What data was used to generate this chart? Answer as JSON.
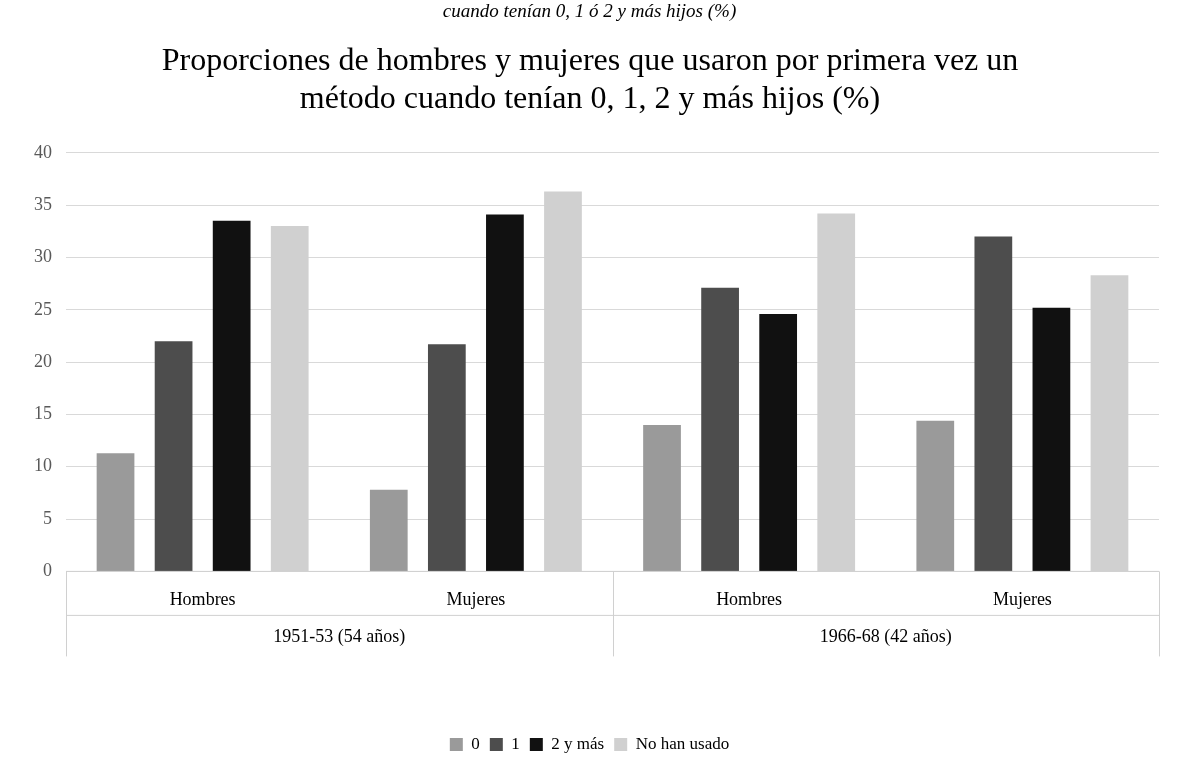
{
  "chart_data": {
    "type": "bar",
    "subtitle": "cuando tenían 0, 1 ó 2 y más hijos (%)",
    "title": "Proporciones de hombres y mujeres que usaron por primera vez un método cuando tenían 0, 1, 2 y más hijos (%)",
    "categories": [
      "Hombres",
      "Mujeres",
      "Hombres",
      "Mujeres"
    ],
    "annotations": [
      "1951-53 (54 años)",
      "1966-68 (42 años)"
    ],
    "series": [
      {
        "name": "0",
        "color": "#9a9a9a",
        "values": [
          11.3,
          7.8,
          14,
          14.4
        ]
      },
      {
        "name": "1",
        "color": "#4d4d4d",
        "values": [
          22,
          21.7,
          27.1,
          32
        ]
      },
      {
        "name": "2 y más",
        "color": "#111111",
        "values": [
          33.5,
          34.1,
          24.6,
          25.2
        ]
      },
      {
        "name": "No han usado",
        "color": "#d0d0d0",
        "values": [
          33,
          36.3,
          34.2,
          28.3
        ]
      }
    ],
    "ylim": [
      0,
      40
    ],
    "yticks": [
      0,
      5,
      10,
      15,
      20,
      25,
      30,
      35,
      40
    ],
    "grid": "y",
    "legend": "bottom"
  }
}
